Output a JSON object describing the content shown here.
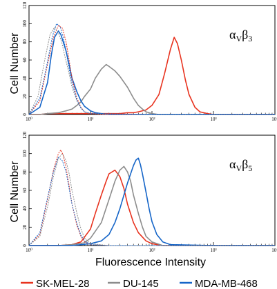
{
  "chart_data": [
    {
      "type": "line",
      "panel_label": {
        "alpha": "α",
        "sub1": "V",
        "beta": "β",
        "sub2": "3"
      },
      "ylabel": "Cell Number",
      "xscale": "log",
      "xlim": [
        1,
        10000
      ],
      "ylim": [
        0,
        120
      ],
      "x_tick_labels": [
        "10⁰",
        "10¹",
        "10²",
        "10³",
        "10⁴"
      ],
      "y_tick_labels": [
        "0",
        "20",
        "40",
        "60",
        "80",
        "100",
        "120"
      ],
      "series": [
        {
          "name": "SK-MEL-28",
          "style": "solid",
          "color": "#e8321e",
          "x": [
            1,
            1.5,
            2,
            2.5,
            3,
            3.5,
            4,
            5,
            6,
            8,
            10,
            15,
            20,
            30,
            40,
            50,
            60,
            80,
            100,
            130,
            160,
            200,
            230,
            260,
            300,
            350,
            400,
            500,
            600,
            800,
            1000,
            2000,
            10000
          ],
          "y": [
            0,
            0,
            1,
            1,
            1,
            1,
            1,
            1,
            1,
            1,
            1,
            1,
            1,
            1,
            2,
            2,
            3,
            5,
            10,
            22,
            45,
            72,
            85,
            78,
            60,
            38,
            22,
            8,
            3,
            1,
            0,
            0,
            0
          ]
        },
        {
          "name": "DU-145",
          "style": "solid",
          "color": "#8c8c8c",
          "x": [
            1,
            1.5,
            2,
            3,
            4,
            5,
            6,
            7,
            8,
            10,
            12,
            15,
            18,
            20,
            25,
            30,
            40,
            50,
            60,
            70,
            80,
            100,
            130,
            150,
            200,
            300,
            1000,
            10000
          ],
          "y": [
            0,
            0,
            1,
            2,
            4,
            6,
            10,
            14,
            20,
            28,
            40,
            50,
            55,
            53,
            48,
            42,
            30,
            18,
            10,
            6,
            3,
            1,
            0,
            0,
            0,
            0,
            0,
            0
          ]
        },
        {
          "name": "MDA-MB-468",
          "style": "solid",
          "color": "#1565c8",
          "x": [
            1,
            1.5,
            2,
            2.3,
            2.6,
            3,
            3.3,
            3.6,
            4,
            4.5,
            5,
            6,
            7,
            8,
            10,
            12,
            15,
            20,
            30,
            50,
            100,
            1000,
            10000
          ],
          "y": [
            0,
            8,
            35,
            65,
            85,
            92,
            88,
            80,
            70,
            55,
            40,
            25,
            15,
            9,
            4,
            2,
            1,
            0,
            0,
            0,
            0,
            0,
            0
          ]
        },
        {
          "name": "SK-MEL-28 control",
          "style": "dashed",
          "color": "#e8321e",
          "x": [
            1,
            1.5,
            2,
            2.5,
            3,
            3.5,
            4,
            4.5,
            5,
            6,
            7,
            8,
            10,
            15,
            100,
            10000
          ],
          "y": [
            0,
            15,
            55,
            85,
            98,
            95,
            80,
            60,
            40,
            18,
            8,
            3,
            1,
            0,
            0,
            0
          ]
        },
        {
          "name": "DU-145 control",
          "style": "dashed",
          "color": "#8c8c8c",
          "x": [
            1,
            1.4,
            1.8,
            2.2,
            2.6,
            3,
            3.4,
            3.8,
            4.5,
            5,
            6,
            7,
            8,
            10,
            100,
            10000
          ],
          "y": [
            0,
            20,
            60,
            88,
            96,
            90,
            80,
            65,
            45,
            30,
            15,
            7,
            3,
            1,
            0,
            0
          ]
        },
        {
          "name": "MDA-MB-468 control",
          "style": "dashed",
          "color": "#1565c8",
          "x": [
            1,
            1.5,
            2,
            2.4,
            2.8,
            3.2,
            3.6,
            4,
            4.5,
            5,
            6,
            7,
            8,
            10,
            100,
            10000
          ],
          "y": [
            0,
            18,
            58,
            86,
            100,
            97,
            85,
            70,
            50,
            35,
            16,
            7,
            3,
            1,
            0,
            0
          ]
        }
      ]
    },
    {
      "type": "line",
      "panel_label": {
        "alpha": "α",
        "sub1": "V",
        "beta": "β",
        "sub2": "5"
      },
      "ylabel": "Cell Number",
      "xlabel": "Fluorescence Intensity",
      "xscale": "log",
      "xlim": [
        1,
        10000
      ],
      "ylim": [
        0,
        120
      ],
      "x_tick_labels": [
        "10⁰",
        "10¹",
        "10²",
        "10³",
        "10⁴"
      ],
      "y_tick_labels": [
        "0",
        "20",
        "40",
        "60",
        "80",
        "100",
        "120"
      ],
      "series": [
        {
          "name": "SK-MEL-28",
          "style": "solid",
          "color": "#e8321e",
          "x": [
            1,
            3,
            5,
            7,
            10,
            12,
            15,
            18,
            20,
            25,
            30,
            35,
            40,
            50,
            60,
            80,
            100,
            150,
            1000,
            10000
          ],
          "y": [
            0,
            0,
            1,
            4,
            18,
            35,
            55,
            70,
            78,
            82,
            75,
            62,
            45,
            25,
            14,
            5,
            2,
            0,
            0,
            0
          ]
        },
        {
          "name": "DU-145",
          "style": "solid",
          "color": "#8c8c8c",
          "x": [
            1,
            3,
            5,
            8,
            10,
            15,
            20,
            25,
            30,
            35,
            40,
            45,
            50,
            60,
            70,
            80,
            100,
            150,
            1000,
            10000
          ],
          "y": [
            0,
            0,
            1,
            3,
            8,
            25,
            50,
            70,
            82,
            86,
            80,
            70,
            55,
            35,
            20,
            10,
            4,
            0,
            0,
            0
          ]
        },
        {
          "name": "MDA-MB-468",
          "style": "solid",
          "color": "#1565c8",
          "x": [
            1,
            5,
            10,
            15,
            20,
            25,
            30,
            35,
            40,
            45,
            50,
            55,
            60,
            65,
            70,
            80,
            90,
            100,
            120,
            150,
            200,
            1000,
            10000
          ],
          "y": [
            0,
            0,
            2,
            5,
            12,
            25,
            40,
            55,
            68,
            78,
            87,
            93,
            95,
            88,
            78,
            58,
            40,
            26,
            12,
            4,
            1,
            0,
            0
          ]
        },
        {
          "name": "SK-MEL-28 control",
          "style": "dashed",
          "color": "#e8321e",
          "x": [
            1,
            1.5,
            2,
            2.5,
            3,
            3.3,
            3.6,
            4,
            4.5,
            5,
            6,
            7,
            8,
            10,
            20,
            100,
            10000
          ],
          "y": [
            0,
            12,
            50,
            82,
            100,
            104,
            98,
            85,
            65,
            45,
            22,
            10,
            4,
            1,
            0,
            0,
            0
          ]
        },
        {
          "name": "DU-145 control",
          "style": "dashed",
          "color": "#8c8c8c",
          "x": [
            1,
            1.5,
            2,
            2.5,
            3,
            3.5,
            4,
            4.5,
            5,
            6,
            7,
            8,
            10,
            20,
            100,
            10000
          ],
          "y": [
            0,
            10,
            42,
            75,
            95,
            100,
            92,
            78,
            60,
            35,
            18,
            8,
            2,
            0,
            0,
            0
          ]
        },
        {
          "name": "MDA-MB-468 control",
          "style": "dashed",
          "color": "#1565c8",
          "x": [
            1,
            1.5,
            2,
            2.5,
            3,
            3.5,
            4,
            4.5,
            5,
            6,
            7,
            8,
            10,
            20,
            100,
            10000
          ],
          "y": [
            0,
            14,
            52,
            80,
            96,
            92,
            80,
            62,
            45,
            24,
            11,
            5,
            1,
            0,
            0,
            0
          ]
        }
      ]
    }
  ],
  "legend": [
    {
      "label": "SK-MEL-28",
      "color": "#e8321e"
    },
    {
      "label": "DU-145",
      "color": "#8c8c8c"
    },
    {
      "label": "MDA-MB-468",
      "color": "#1565c8"
    }
  ]
}
